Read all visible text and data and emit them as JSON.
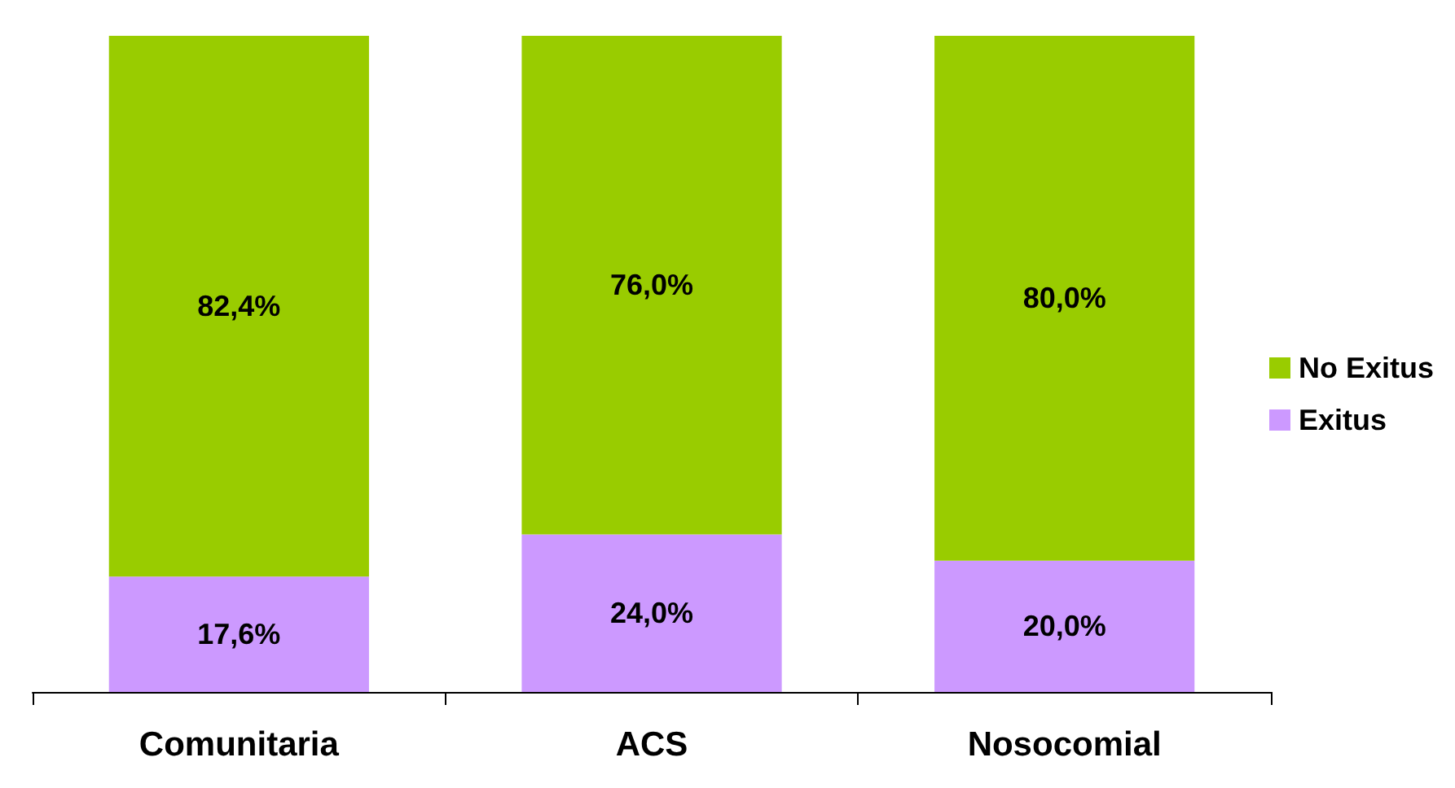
{
  "chart_data": {
    "type": "bar",
    "stacked": true,
    "categories": [
      "Comunitaria",
      "ACS",
      "Nosocomial"
    ],
    "series": [
      {
        "name": "Exitus",
        "color": "#cc99ff",
        "values": [
          17.6,
          24.0,
          20.0
        ],
        "value_labels": [
          "17,6%",
          "24,0%",
          "20,0%"
        ]
      },
      {
        "name": "No Exitus",
        "color": "#99cc00",
        "values": [
          82.4,
          76.0,
          80.0
        ],
        "value_labels": [
          "82,4%",
          "76,0%",
          "80,0%"
        ]
      }
    ],
    "ylim": [
      0,
      100
    ],
    "tick_labels": "x",
    "grid": false,
    "legend": "right"
  }
}
